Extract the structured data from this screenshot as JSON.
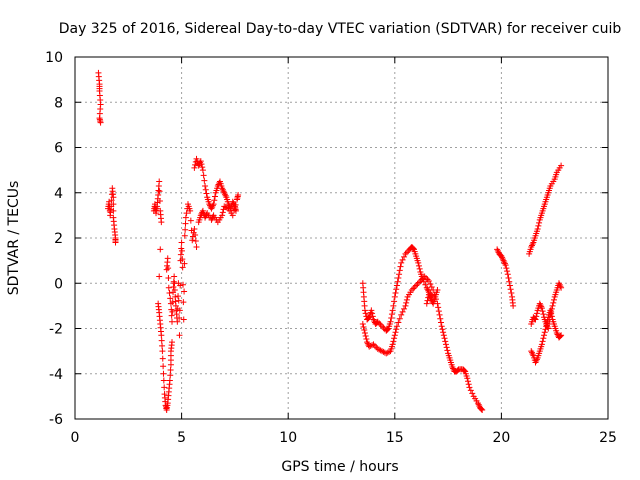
{
  "chart_data": {
    "type": "scatter",
    "title": "Day 325 of 2016, Sidereal Day-to-day VTEC variation (SDTVAR) for receiver cuib",
    "xlabel": "GPS time / hours",
    "ylabel": "SDTVAR / TECUs",
    "xlim": [
      0,
      25
    ],
    "ylim": [
      -6,
      10
    ],
    "xticks": [
      0,
      5,
      10,
      15,
      20,
      25
    ],
    "yticks": [
      -6,
      -4,
      -2,
      0,
      2,
      4,
      6,
      8,
      10
    ],
    "grid": true,
    "marker": "plus",
    "color": "#ff0000",
    "segments": [
      [
        [
          1.1,
          9.3
        ],
        [
          1.15,
          8.8
        ],
        [
          1.15,
          8.5
        ],
        [
          1.2,
          7.9
        ],
        [
          1.15,
          7.3
        ],
        [
          1.2,
          7.1
        ]
      ],
      [
        [
          1.55,
          3.3
        ],
        [
          1.6,
          3.6
        ],
        [
          1.65,
          3.0
        ],
        [
          1.7,
          3.4
        ],
        [
          1.75,
          4.2
        ],
        [
          1.8,
          3.8
        ],
        [
          1.8,
          2.9
        ],
        [
          1.85,
          2.4
        ],
        [
          1.9,
          2.0
        ],
        [
          1.9,
          1.8
        ]
      ],
      [
        [
          3.7,
          3.2
        ],
        [
          3.75,
          3.5
        ],
        [
          3.8,
          3.1
        ],
        [
          3.85,
          3.4
        ],
        [
          3.9,
          3.9
        ],
        [
          3.95,
          4.5
        ],
        [
          4.0,
          3.2
        ],
        [
          4.05,
          2.7
        ],
        [
          3.9,
          -0.9
        ],
        [
          3.95,
          -1.3
        ],
        [
          4.0,
          -1.8
        ],
        [
          4.05,
          -2.3
        ],
        [
          4.1,
          -3.0
        ],
        [
          4.15,
          -4.0
        ],
        [
          4.2,
          -4.9
        ],
        [
          4.25,
          -5.4
        ],
        [
          4.3,
          -5.6
        ],
        [
          4.35,
          -5.3
        ],
        [
          4.4,
          -4.8
        ],
        [
          4.45,
          -4.3
        ],
        [
          4.5,
          -3.6
        ],
        [
          4.5,
          -3.0
        ],
        [
          4.55,
          -2.6
        ]
      ],
      [
        [
          4.3,
          0.6
        ],
        [
          4.35,
          1.1
        ],
        [
          4.4,
          -0.2
        ],
        [
          4.5,
          -0.9
        ],
        [
          4.55,
          -1.7
        ],
        [
          4.6,
          -0.4
        ],
        [
          4.65,
          0.3
        ],
        [
          4.7,
          -0.6
        ],
        [
          4.75,
          -1.2
        ],
        [
          4.8,
          -1.7
        ],
        [
          4.85,
          0.0
        ],
        [
          4.9,
          -2.3
        ],
        [
          4.95,
          1.0
        ],
        [
          5.0,
          1.8
        ],
        [
          5.05,
          0.7
        ],
        [
          5.1,
          -1.6
        ],
        [
          5.15,
          2.1
        ],
        [
          5.2,
          2.9
        ],
        [
          5.3,
          3.5
        ],
        [
          5.4,
          3.2
        ],
        [
          5.5,
          1.9
        ],
        [
          5.6,
          2.4
        ],
        [
          5.7,
          1.6
        ]
      ],
      [
        [
          5.6,
          5.1
        ],
        [
          5.7,
          5.5
        ],
        [
          5.8,
          5.2
        ],
        [
          5.9,
          5.4
        ],
        [
          6.0,
          5.0
        ],
        [
          6.1,
          4.3
        ],
        [
          6.2,
          3.8
        ],
        [
          6.3,
          3.5
        ],
        [
          6.4,
          3.3
        ],
        [
          6.5,
          3.5
        ],
        [
          6.6,
          4.0
        ],
        [
          6.7,
          4.3
        ],
        [
          6.8,
          4.5
        ],
        [
          6.9,
          4.2
        ],
        [
          7.0,
          4.0
        ],
        [
          7.1,
          3.8
        ],
        [
          7.2,
          3.5
        ],
        [
          7.3,
          3.3
        ],
        [
          7.4,
          3.6
        ],
        [
          7.5,
          3.4
        ],
        [
          7.55,
          3.2
        ]
      ],
      [
        [
          5.8,
          2.7
        ],
        [
          5.9,
          3.0
        ],
        [
          6.0,
          3.2
        ],
        [
          6.1,
          2.9
        ],
        [
          6.2,
          3.1
        ],
        [
          6.4,
          2.8
        ],
        [
          6.5,
          3.0
        ],
        [
          6.7,
          2.7
        ],
        [
          6.9,
          3.0
        ],
        [
          7.0,
          3.4
        ],
        [
          7.2,
          3.3
        ],
        [
          7.4,
          3.0
        ],
        [
          7.6,
          3.7
        ],
        [
          7.65,
          3.9
        ]
      ],
      [
        [
          13.5,
          0.0
        ],
        [
          13.55,
          -0.6
        ],
        [
          13.6,
          -1.2
        ],
        [
          13.7,
          -1.6
        ],
        [
          13.8,
          -1.5
        ],
        [
          13.9,
          -1.2
        ],
        [
          14.0,
          -1.6
        ],
        [
          14.1,
          -1.8
        ],
        [
          14.2,
          -1.7
        ],
        [
          14.4,
          -1.9
        ],
        [
          14.6,
          -2.1
        ],
        [
          14.7,
          -2.0
        ],
        [
          14.8,
          -1.7
        ],
        [
          14.9,
          -1.2
        ],
        [
          15.0,
          -0.6
        ],
        [
          15.1,
          -0.1
        ],
        [
          15.2,
          0.4
        ],
        [
          15.3,
          0.9
        ],
        [
          15.5,
          1.3
        ],
        [
          15.7,
          1.5
        ],
        [
          15.8,
          1.6
        ],
        [
          15.9,
          1.5
        ],
        [
          16.0,
          1.2
        ],
        [
          16.1,
          0.9
        ],
        [
          16.2,
          0.5
        ],
        [
          16.3,
          0.2
        ],
        [
          16.5,
          -0.2
        ],
        [
          16.6,
          -0.4
        ],
        [
          16.8,
          -0.6
        ]
      ],
      [
        [
          13.5,
          -1.8
        ],
        [
          13.6,
          -2.2
        ],
        [
          13.7,
          -2.6
        ],
        [
          13.8,
          -2.8
        ],
        [
          14.0,
          -2.7
        ],
        [
          14.2,
          -2.9
        ],
        [
          14.4,
          -3.0
        ],
        [
          14.6,
          -3.1
        ],
        [
          14.8,
          -3.0
        ],
        [
          14.9,
          -2.7
        ],
        [
          15.0,
          -2.3
        ],
        [
          15.1,
          -1.9
        ],
        [
          15.3,
          -1.4
        ],
        [
          15.5,
          -1.0
        ],
        [
          15.6,
          -0.6
        ],
        [
          15.8,
          -0.3
        ],
        [
          16.0,
          -0.1
        ],
        [
          16.2,
          0.1
        ],
        [
          16.4,
          0.3
        ],
        [
          16.6,
          0.1
        ],
        [
          16.8,
          -0.3
        ],
        [
          17.0,
          -0.9
        ],
        [
          17.1,
          -1.4
        ],
        [
          17.2,
          -1.9
        ],
        [
          17.3,
          -2.3
        ],
        [
          17.4,
          -2.7
        ],
        [
          17.5,
          -3.1
        ],
        [
          17.6,
          -3.4
        ],
        [
          17.7,
          -3.7
        ],
        [
          17.8,
          -3.9
        ],
        [
          17.9,
          -3.9
        ],
        [
          18.0,
          -3.8
        ],
        [
          18.2,
          -3.8
        ],
        [
          18.3,
          -3.9
        ],
        [
          18.4,
          -4.2
        ],
        [
          18.5,
          -4.6
        ],
        [
          18.7,
          -5.0
        ],
        [
          18.9,
          -5.3
        ],
        [
          19.0,
          -5.5
        ],
        [
          19.1,
          -5.6
        ]
      ],
      [
        [
          16.5,
          -0.9
        ],
        [
          16.6,
          -0.5
        ],
        [
          16.7,
          -0.7
        ],
        [
          16.8,
          -0.9
        ],
        [
          16.9,
          -0.6
        ],
        [
          17.0,
          -0.3
        ]
      ],
      [
        [
          19.8,
          1.5
        ],
        [
          19.9,
          1.3
        ],
        [
          20.0,
          1.2
        ],
        [
          20.1,
          1.0
        ],
        [
          20.2,
          0.8
        ],
        [
          20.3,
          0.4
        ],
        [
          20.4,
          -0.1
        ],
        [
          20.5,
          -0.6
        ],
        [
          20.55,
          -1.0
        ]
      ],
      [
        [
          21.3,
          1.3
        ],
        [
          21.4,
          1.6
        ],
        [
          21.5,
          1.8
        ],
        [
          21.6,
          2.1
        ],
        [
          21.7,
          2.4
        ],
        [
          21.8,
          2.8
        ],
        [
          21.9,
          3.1
        ],
        [
          22.0,
          3.4
        ],
        [
          22.1,
          3.7
        ],
        [
          22.2,
          4.0
        ],
        [
          22.3,
          4.3
        ],
        [
          22.5,
          4.6
        ],
        [
          22.6,
          4.9
        ],
        [
          22.8,
          5.2
        ]
      ],
      [
        [
          21.4,
          -1.8
        ],
        [
          21.5,
          -1.5
        ],
        [
          21.6,
          -1.6
        ],
        [
          21.7,
          -1.2
        ],
        [
          21.8,
          -0.9
        ],
        [
          21.9,
          -1.1
        ],
        [
          22.0,
          -1.5
        ],
        [
          22.1,
          -1.8
        ],
        [
          22.2,
          -2.0
        ],
        [
          22.3,
          -1.4
        ],
        [
          22.4,
          -1.0
        ],
        [
          22.5,
          -0.6
        ],
        [
          22.6,
          -0.3
        ],
        [
          22.7,
          0.0
        ],
        [
          22.8,
          -0.2
        ]
      ],
      [
        [
          21.4,
          -3.0
        ],
        [
          21.5,
          -3.2
        ],
        [
          21.6,
          -3.5
        ],
        [
          21.7,
          -3.3
        ],
        [
          21.8,
          -3.0
        ],
        [
          21.9,
          -2.7
        ],
        [
          22.0,
          -2.3
        ],
        [
          22.1,
          -1.9
        ],
        [
          22.2,
          -1.5
        ],
        [
          22.3,
          -1.2
        ],
        [
          22.4,
          -1.6
        ],
        [
          22.5,
          -1.9
        ],
        [
          22.6,
          -2.2
        ],
        [
          22.7,
          -2.4
        ],
        [
          22.8,
          -2.3
        ]
      ]
    ]
  }
}
